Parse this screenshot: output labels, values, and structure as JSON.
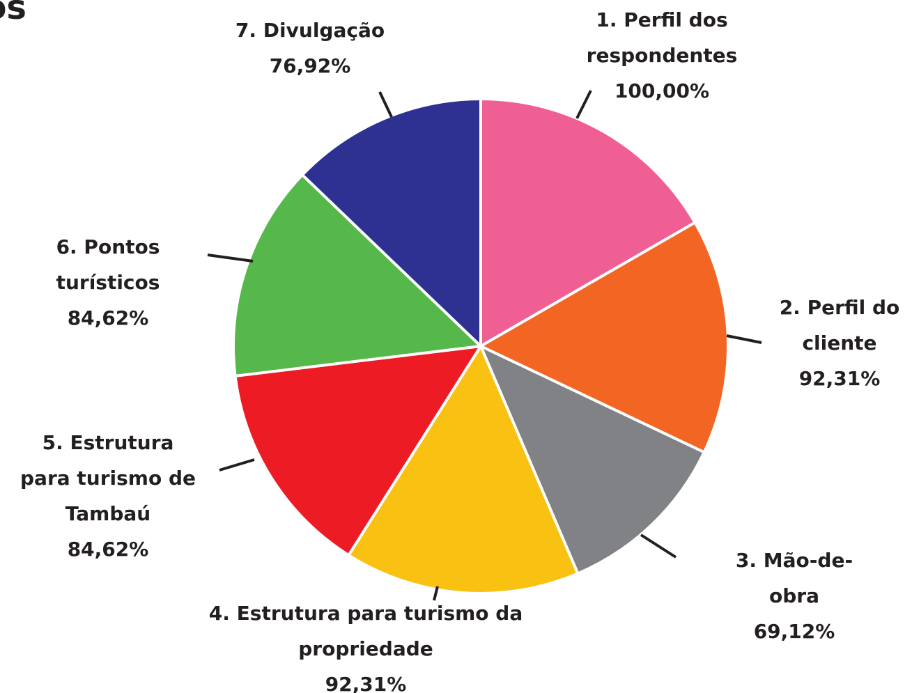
{
  "chart_data": {
    "type": "pie",
    "title": "ios",
    "categories": [
      "1. Perfil dos respondentes",
      "2. Perfil do cliente",
      "3. Mão-de-obra",
      "4. Estrutura para turismo da propriedade",
      "5. Estrutura para turismo de Tambaú",
      "6. Pontos turísticos",
      "7. Divulgação"
    ],
    "values": [
      100,
      92.31,
      69.12,
      92.31,
      84.62,
      84.62,
      76.92
    ],
    "value_labels": [
      "100,00%",
      "92,31%",
      "69,12%",
      "92,31%",
      "84,62%",
      "84,62%",
      "76,92%"
    ],
    "colors": [
      "#ef5f93",
      "#f26522",
      "#808285",
      "#f9c111",
      "#ed1c24",
      "#56b84b",
      "#2e3192"
    ]
  }
}
